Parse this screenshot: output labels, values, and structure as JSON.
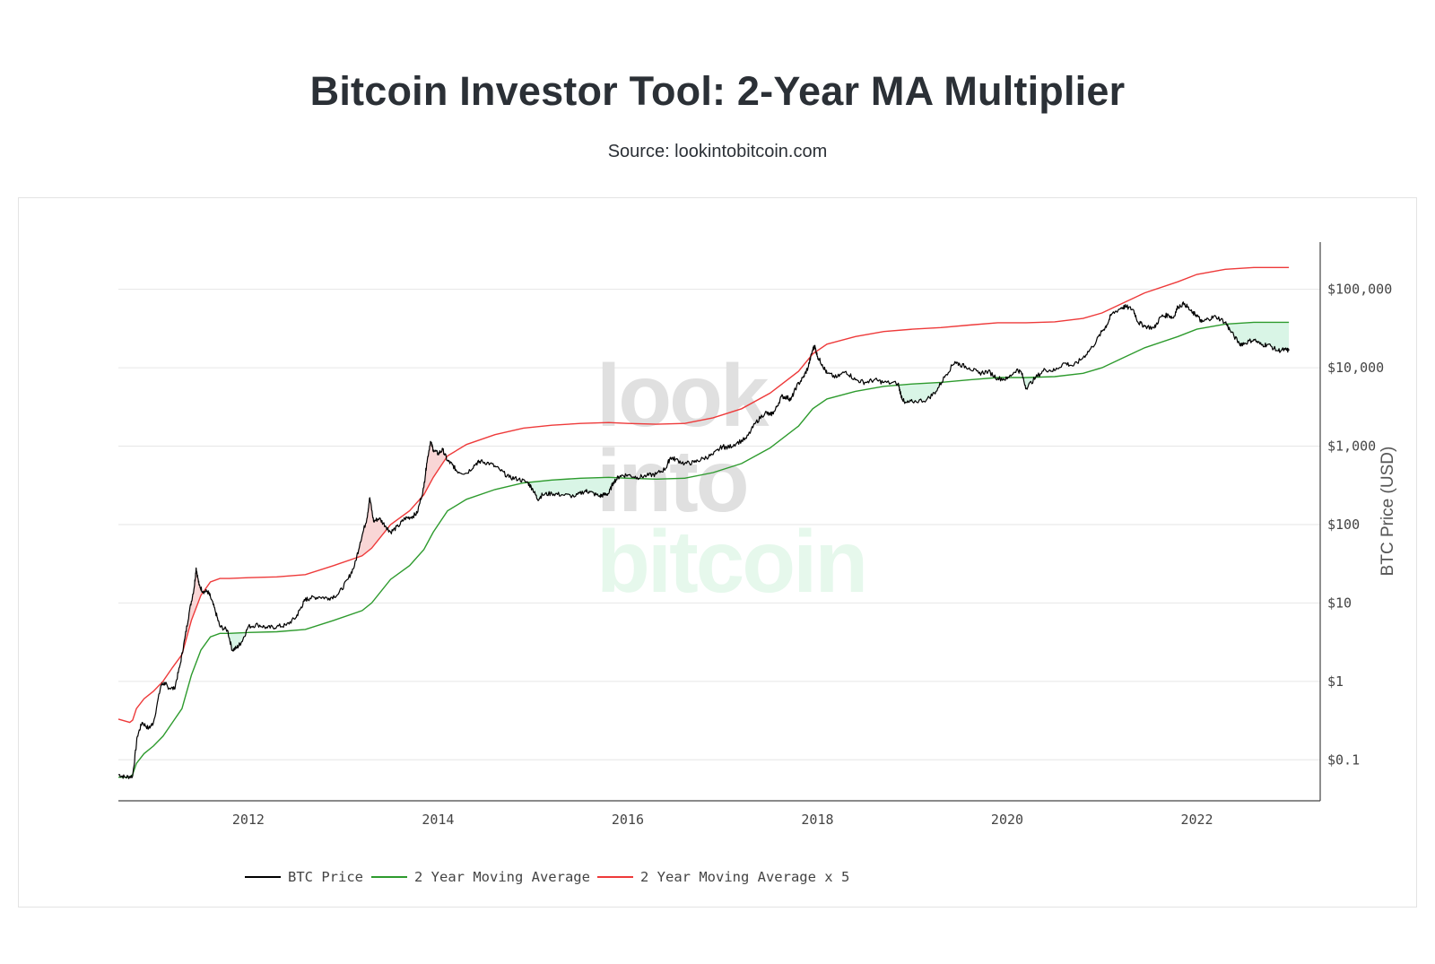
{
  "title": "Bitcoin Investor Tool: 2-Year MA Multiplier",
  "subtitle": "Source: lookintobitcoin.com",
  "watermark": {
    "line1": "look",
    "line2": "into",
    "line3": "bitcoin"
  },
  "colors": {
    "price": "#000000",
    "ma": "#2e9b2e",
    "ma5": "#ee3a3a",
    "fill_green": "#d9f5e6",
    "fill_red": "#f9d6d6",
    "grid": "#e6e6e6"
  },
  "chart_data": {
    "type": "line",
    "title": "Bitcoin Investor Tool: 2-Year MA Multiplier",
    "subtitle": "Source: lookintobitcoin.com",
    "xlabel": "",
    "ylabel": "BTC Price (USD)",
    "y_scale": "log",
    "xlim": [
      2010.63,
      2023.3
    ],
    "ylim": [
      0.03,
      400000
    ],
    "x_ticks": [
      {
        "value": 2012,
        "label": "2012"
      },
      {
        "value": 2014,
        "label": "2014"
      },
      {
        "value": 2016,
        "label": "2016"
      },
      {
        "value": 2018,
        "label": "2018"
      },
      {
        "value": 2020,
        "label": "2020"
      },
      {
        "value": 2022,
        "label": "2022"
      }
    ],
    "y_ticks": [
      {
        "value": 0.1,
        "label": "$0.1"
      },
      {
        "value": 1,
        "label": "$1"
      },
      {
        "value": 10,
        "label": "$10"
      },
      {
        "value": 100,
        "label": "$100"
      },
      {
        "value": 1000,
        "label": "$1,000"
      },
      {
        "value": 10000,
        "label": "$10,000"
      },
      {
        "value": 100000,
        "label": "$100,000"
      }
    ],
    "legend_position": "bottom-left",
    "series": [
      {
        "name": "BTC Price",
        "color": "#000000",
        "points": [
          [
            2010.63,
            0.065
          ],
          [
            2010.7,
            0.06
          ],
          [
            2010.78,
            0.062
          ],
          [
            2010.83,
            0.2
          ],
          [
            2010.88,
            0.3
          ],
          [
            2010.95,
            0.25
          ],
          [
            2011.0,
            0.3
          ],
          [
            2011.08,
            0.9
          ],
          [
            2011.12,
            0.95
          ],
          [
            2011.15,
            0.85
          ],
          [
            2011.22,
            0.8
          ],
          [
            2011.28,
            1.6
          ],
          [
            2011.33,
            3.5
          ],
          [
            2011.38,
            8
          ],
          [
            2011.43,
            16
          ],
          [
            2011.45,
            28
          ],
          [
            2011.48,
            17
          ],
          [
            2011.52,
            14
          ],
          [
            2011.57,
            14
          ],
          [
            2011.6,
            12
          ],
          [
            2011.65,
            8
          ],
          [
            2011.7,
            5
          ],
          [
            2011.78,
            4.5
          ],
          [
            2011.83,
            2.5
          ],
          [
            2011.88,
            2.7
          ],
          [
            2011.93,
            3.2
          ],
          [
            2012.0,
            5
          ],
          [
            2012.1,
            5.3
          ],
          [
            2012.2,
            4.8
          ],
          [
            2012.3,
            5
          ],
          [
            2012.4,
            5.2
          ],
          [
            2012.5,
            6.5
          ],
          [
            2012.55,
            8.5
          ],
          [
            2012.6,
            11
          ],
          [
            2012.65,
            11.5
          ],
          [
            2012.75,
            12
          ],
          [
            2012.85,
            11.5
          ],
          [
            2012.95,
            13
          ],
          [
            2013.05,
            20
          ],
          [
            2013.12,
            30
          ],
          [
            2013.18,
            60
          ],
          [
            2013.25,
            120
          ],
          [
            2013.28,
            220
          ],
          [
            2013.32,
            110
          ],
          [
            2013.38,
            120
          ],
          [
            2013.45,
            95
          ],
          [
            2013.5,
            80
          ],
          [
            2013.58,
            95
          ],
          [
            2013.65,
            120
          ],
          [
            2013.72,
            125
          ],
          [
            2013.78,
            140
          ],
          [
            2013.85,
            300
          ],
          [
            2013.88,
            600
          ],
          [
            2013.92,
            1150
          ],
          [
            2013.95,
            900
          ],
          [
            2014.0,
            800
          ],
          [
            2014.05,
            900
          ],
          [
            2014.1,
            650
          ],
          [
            2014.15,
            580
          ],
          [
            2014.2,
            480
          ],
          [
            2014.3,
            450
          ],
          [
            2014.4,
            600
          ],
          [
            2014.45,
            640
          ],
          [
            2014.55,
            600
          ],
          [
            2014.65,
            500
          ],
          [
            2014.75,
            400
          ],
          [
            2014.85,
            380
          ],
          [
            2014.95,
            340
          ],
          [
            2015.0,
            280
          ],
          [
            2015.05,
            210
          ],
          [
            2015.1,
            240
          ],
          [
            2015.2,
            250
          ],
          [
            2015.3,
            240
          ],
          [
            2015.45,
            230
          ],
          [
            2015.55,
            270
          ],
          [
            2015.6,
            260
          ],
          [
            2015.7,
            230
          ],
          [
            2015.75,
            240
          ],
          [
            2015.8,
            250
          ],
          [
            2015.85,
            350
          ],
          [
            2015.92,
            420
          ],
          [
            2016.0,
            430
          ],
          [
            2016.1,
            400
          ],
          [
            2016.2,
            420
          ],
          [
            2016.3,
            440
          ],
          [
            2016.4,
            520
          ],
          [
            2016.45,
            720
          ],
          [
            2016.5,
            680
          ],
          [
            2016.6,
            600
          ],
          [
            2016.7,
            620
          ],
          [
            2016.8,
            700
          ],
          [
            2016.9,
            780
          ],
          [
            2017.0,
            1000
          ],
          [
            2017.05,
            950
          ],
          [
            2017.15,
            1100
          ],
          [
            2017.25,
            1250
          ],
          [
            2017.35,
            2000
          ],
          [
            2017.45,
            2700
          ],
          [
            2017.5,
            2500
          ],
          [
            2017.55,
            2800
          ],
          [
            2017.62,
            4300
          ],
          [
            2017.68,
            4200
          ],
          [
            2017.72,
            3900
          ],
          [
            2017.78,
            5800
          ],
          [
            2017.85,
            7500
          ],
          [
            2017.9,
            10000
          ],
          [
            2017.95,
            17000
          ],
          [
            2017.97,
            19000
          ],
          [
            2018.0,
            14000
          ],
          [
            2018.05,
            11000
          ],
          [
            2018.1,
            8500
          ],
          [
            2018.2,
            7500
          ],
          [
            2018.3,
            9000
          ],
          [
            2018.4,
            7000
          ],
          [
            2018.5,
            6500
          ],
          [
            2018.6,
            7000
          ],
          [
            2018.7,
            6500
          ],
          [
            2018.85,
            6300
          ],
          [
            2018.88,
            4500
          ],
          [
            2018.92,
            3500
          ],
          [
            2019.0,
            3700
          ],
          [
            2019.15,
            3900
          ],
          [
            2019.25,
            5000
          ],
          [
            2019.35,
            8000
          ],
          [
            2019.45,
            12000
          ],
          [
            2019.5,
            11000
          ],
          [
            2019.6,
            10000
          ],
          [
            2019.7,
            8500
          ],
          [
            2019.8,
            9000
          ],
          [
            2019.9,
            7300
          ],
          [
            2020.0,
            7200
          ],
          [
            2020.1,
            9500
          ],
          [
            2020.15,
            8700
          ],
          [
            2020.2,
            5500
          ],
          [
            2020.3,
            7500
          ],
          [
            2020.4,
            9500
          ],
          [
            2020.5,
            9200
          ],
          [
            2020.6,
            11500
          ],
          [
            2020.7,
            10600
          ],
          [
            2020.8,
            13500
          ],
          [
            2020.9,
            18500
          ],
          [
            2021.0,
            29000
          ],
          [
            2021.05,
            35000
          ],
          [
            2021.1,
            48000
          ],
          [
            2021.2,
            58000
          ],
          [
            2021.25,
            60000
          ],
          [
            2021.33,
            55000
          ],
          [
            2021.38,
            38000
          ],
          [
            2021.45,
            34000
          ],
          [
            2021.55,
            32000
          ],
          [
            2021.62,
            45000
          ],
          [
            2021.7,
            47000
          ],
          [
            2021.75,
            43000
          ],
          [
            2021.8,
            60000
          ],
          [
            2021.87,
            66000
          ],
          [
            2021.95,
            50000
          ],
          [
            2022.0,
            47000
          ],
          [
            2022.05,
            38000
          ],
          [
            2022.12,
            42000
          ],
          [
            2022.2,
            45000
          ],
          [
            2022.3,
            38000
          ],
          [
            2022.35,
            30000
          ],
          [
            2022.45,
            20000
          ],
          [
            2022.5,
            20500
          ],
          [
            2022.6,
            23000
          ],
          [
            2022.68,
            19500
          ],
          [
            2022.75,
            19800
          ],
          [
            2022.85,
            16500
          ],
          [
            2022.93,
            17000
          ],
          [
            2022.97,
            16500
          ]
        ]
      },
      {
        "name": "2 Year Moving Average",
        "color": "#2e9b2e",
        "points": [
          [
            2010.63,
            0.06
          ],
          [
            2010.75,
            0.06
          ],
          [
            2010.78,
            0.065
          ],
          [
            2010.82,
            0.09
          ],
          [
            2010.9,
            0.12
          ],
          [
            2011.0,
            0.15
          ],
          [
            2011.1,
            0.2
          ],
          [
            2011.2,
            0.3
          ],
          [
            2011.3,
            0.45
          ],
          [
            2011.4,
            1.2
          ],
          [
            2011.5,
            2.5
          ],
          [
            2011.6,
            3.7
          ],
          [
            2011.7,
            4.1
          ],
          [
            2011.8,
            4.1
          ],
          [
            2012.0,
            4.2
          ],
          [
            2012.3,
            4.3
          ],
          [
            2012.6,
            4.6
          ],
          [
            2012.9,
            6
          ],
          [
            2013.2,
            8
          ],
          [
            2013.3,
            10
          ],
          [
            2013.5,
            20
          ],
          [
            2013.7,
            30
          ],
          [
            2013.85,
            48
          ],
          [
            2013.95,
            80
          ],
          [
            2014.1,
            150
          ],
          [
            2014.3,
            210
          ],
          [
            2014.6,
            280
          ],
          [
            2014.9,
            340
          ],
          [
            2015.2,
            370
          ],
          [
            2015.5,
            390
          ],
          [
            2015.8,
            400
          ],
          [
            2016.0,
            390
          ],
          [
            2016.3,
            380
          ],
          [
            2016.6,
            390
          ],
          [
            2016.9,
            460
          ],
          [
            2017.2,
            600
          ],
          [
            2017.5,
            950
          ],
          [
            2017.8,
            1800
          ],
          [
            2017.95,
            3000
          ],
          [
            2018.1,
            4000
          ],
          [
            2018.4,
            5000
          ],
          [
            2018.7,
            5800
          ],
          [
            2019.0,
            6200
          ],
          [
            2019.3,
            6500
          ],
          [
            2019.6,
            7000
          ],
          [
            2019.9,
            7500
          ],
          [
            2020.2,
            7500
          ],
          [
            2020.5,
            7700
          ],
          [
            2020.8,
            8500
          ],
          [
            2021.0,
            10000
          ],
          [
            2021.2,
            13000
          ],
          [
            2021.45,
            18000
          ],
          [
            2021.8,
            25000
          ],
          [
            2022.0,
            31000
          ],
          [
            2022.3,
            36000
          ],
          [
            2022.6,
            38000
          ],
          [
            2022.97,
            38000
          ]
        ]
      },
      {
        "name": "2 Year Moving Average x 5",
        "color": "#ee3a3a",
        "points": [
          [
            2010.63,
            0.33
          ],
          [
            2010.75,
            0.3
          ],
          [
            2010.78,
            0.32
          ],
          [
            2010.82,
            0.45
          ],
          [
            2010.9,
            0.6
          ],
          [
            2011.0,
            0.75
          ],
          [
            2011.1,
            1
          ],
          [
            2011.2,
            1.5
          ],
          [
            2011.3,
            2.2
          ],
          [
            2011.4,
            6
          ],
          [
            2011.5,
            12.5
          ],
          [
            2011.6,
            18.5
          ],
          [
            2011.7,
            20.5
          ],
          [
            2011.8,
            20.5
          ],
          [
            2012.0,
            21
          ],
          [
            2012.3,
            21.5
          ],
          [
            2012.6,
            23
          ],
          [
            2012.9,
            30
          ],
          [
            2013.2,
            40
          ],
          [
            2013.3,
            50
          ],
          [
            2013.5,
            100
          ],
          [
            2013.7,
            150
          ],
          [
            2013.85,
            240
          ],
          [
            2013.95,
            400
          ],
          [
            2014.1,
            750
          ],
          [
            2014.3,
            1050
          ],
          [
            2014.6,
            1400
          ],
          [
            2014.9,
            1700
          ],
          [
            2015.2,
            1850
          ],
          [
            2015.5,
            1950
          ],
          [
            2015.8,
            2000
          ],
          [
            2016.0,
            1950
          ],
          [
            2016.3,
            1900
          ],
          [
            2016.6,
            1950
          ],
          [
            2016.9,
            2300
          ],
          [
            2017.2,
            3000
          ],
          [
            2017.5,
            4750
          ],
          [
            2017.8,
            9000
          ],
          [
            2017.95,
            15000
          ],
          [
            2018.1,
            20000
          ],
          [
            2018.4,
            25000
          ],
          [
            2018.7,
            29000
          ],
          [
            2019.0,
            31000
          ],
          [
            2019.3,
            32500
          ],
          [
            2019.6,
            35000
          ],
          [
            2019.9,
            37500
          ],
          [
            2020.2,
            37500
          ],
          [
            2020.5,
            38500
          ],
          [
            2020.8,
            42500
          ],
          [
            2021.0,
            50000
          ],
          [
            2021.2,
            65000
          ],
          [
            2021.45,
            90000
          ],
          [
            2021.8,
            125000
          ],
          [
            2022.0,
            155000
          ],
          [
            2022.3,
            180000
          ],
          [
            2022.6,
            190000
          ],
          [
            2022.97,
            190000
          ]
        ]
      }
    ]
  }
}
